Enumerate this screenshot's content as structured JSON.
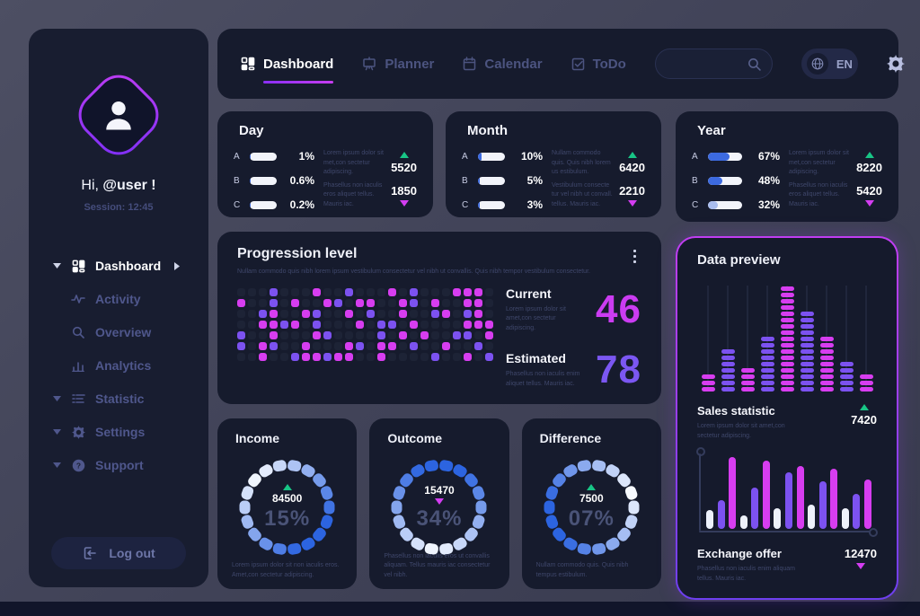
{
  "colors": {
    "magenta": "#d73df0",
    "purple": "#7c52f0",
    "blue": "#3c6ae0",
    "light_blue": "#a9bdef",
    "green": "#18c586",
    "white_bar": "#edf1fa",
    "cell_off": "#1d2336",
    "ring_light": [
      247,
      250,
      255
    ],
    "ring_deep": [
      44,
      100,
      224
    ]
  },
  "sidebar": {
    "greeting_prefix": "Hi,",
    "username": "@user !",
    "session": "Session: 12:45",
    "items": [
      {
        "label": "Dashboard"
      },
      {
        "label": "Activity"
      },
      {
        "label": "Overview"
      },
      {
        "label": "Analytics"
      },
      {
        "label": "Statistic"
      },
      {
        "label": "Settings"
      },
      {
        "label": "Support"
      }
    ],
    "logout_label": "Log out"
  },
  "topnav": {
    "tabs": [
      {
        "label": "Dashboard"
      },
      {
        "label": "Planner"
      },
      {
        "label": "Calendar"
      },
      {
        "label": "ToDo"
      }
    ],
    "search_placeholder": "",
    "language": "EN"
  },
  "stat_cards": [
    {
      "title": "Day",
      "rows": [
        {
          "label": "A",
          "percent": "1%",
          "fill": 4
        },
        {
          "label": "B",
          "percent": "0.6%",
          "fill": 3
        },
        {
          "label": "C",
          "percent": "0.2%",
          "fill": 2
        }
      ],
      "up": {
        "value": "5520",
        "text": "Lorem ipsum dolor sit met,con sectetur adipiscing."
      },
      "down": {
        "value": "1850",
        "text": "Phasellus non iaculis eros aliquet tellus. Mauris iac."
      }
    },
    {
      "title": "Month",
      "rows": [
        {
          "label": "A",
          "percent": "10%",
          "fill": 13
        },
        {
          "label": "B",
          "percent": "5%",
          "fill": 8
        },
        {
          "label": "C",
          "percent": "3%",
          "fill": 6
        }
      ],
      "up": {
        "value": "6420",
        "text": "Nullam commodo quis. Quis nibh lorem us estibulum."
      },
      "down": {
        "value": "2210",
        "text": "Vestibulum consecte tur vel nibh ut convall. tellus. Mauris iac."
      }
    },
    {
      "title": "Year",
      "rows": [
        {
          "label": "A",
          "percent": "67%",
          "fill": 62
        },
        {
          "label": "B",
          "percent": "48%",
          "fill": 42
        },
        {
          "label": "C",
          "percent": "32%",
          "fill": 28,
          "fill_color": "#a9bdef"
        }
      ],
      "up": {
        "value": "8220",
        "text": "Lorem ipsum dolor sit met,con sectetur adipiscing."
      },
      "down": {
        "value": "5420",
        "text": "Phasellus non iaculis eros aliquet tellus. Mauris iac."
      }
    }
  ],
  "progression": {
    "title": "Progression level",
    "subtitle": "Nullam commodo quis nibh lorem ipsum vestibulum consectetur vel nibh ut convallis. Quis nibh tempor vestibulum consectetur.",
    "matrix": [
      "...p...m..p...m.p...mmm.",
      "m..p.m..mp.mm..mp.m..mm.",
      "..pm..mp..m.p..m..pm.pm.",
      "..mmpm.p...m.pp.m....mmm",
      "p..m...mp....p.m.m..pp.m",
      "p.mp..m...mp.mm.p..m..p.",
      "..m..pmmpmm..m....p..m.p"
    ],
    "current": {
      "label": "Current",
      "desc": "Lorem ipsum dolor sit amet,con sectetur adipiscing.",
      "value": "46"
    },
    "estimated": {
      "label": "Estimated",
      "desc": "Phasellus non iaculis enim aliquet tellus. Mauris iac.",
      "value": "78"
    }
  },
  "data_preview": {
    "title": "Data preview",
    "chart_data": {
      "type": "bar",
      "equalizer_segment_counts": [
        3,
        7,
        4,
        9,
        17,
        13,
        9,
        5,
        3
      ],
      "equalizer_color_pattern": [
        "m",
        "p",
        "m",
        "p",
        "m",
        "p",
        "m",
        "p",
        "m"
      ],
      "exchange_bar_heights_pct": [
        25,
        38,
        95,
        18,
        55,
        90,
        27,
        75,
        83,
        32,
        63,
        80,
        27,
        47,
        65
      ],
      "exchange_bar_color_pattern": [
        "w",
        "p",
        "m"
      ]
    },
    "sales": {
      "label": "Sales statistic",
      "desc": "Lorem ipsum dolor sit amet,con sectetur adipiscing.",
      "value": "7420",
      "direction": "up"
    },
    "exchange": {
      "label": "Exchange offer",
      "desc": "Phasellus non iaculis enim aliquam tellus. Mauris iac.",
      "value": "12470",
      "direction": "down"
    }
  },
  "donut_cards": [
    {
      "title": "Income",
      "value": "84500",
      "percent": "15%",
      "direction": "up",
      "highlight_angle": 225,
      "desc": "Lorem ipsum dolor sit non iaculis eros. Amet,con sectetur adipiscing."
    },
    {
      "title": "Outcome",
      "value": "15470",
      "percent": "34%",
      "direction": "down",
      "highlight_angle": 95,
      "desc": "Phasellus non iaculis eros ut convallis aliquam. Tellus mauris iac consectetur vel nibh."
    },
    {
      "title": "Difference",
      "value": "7500",
      "percent": "07%",
      "direction": "up",
      "highlight_angle": 340,
      "desc": "Nullam commodo quis. Quis nibh tempus estibulum."
    }
  ]
}
